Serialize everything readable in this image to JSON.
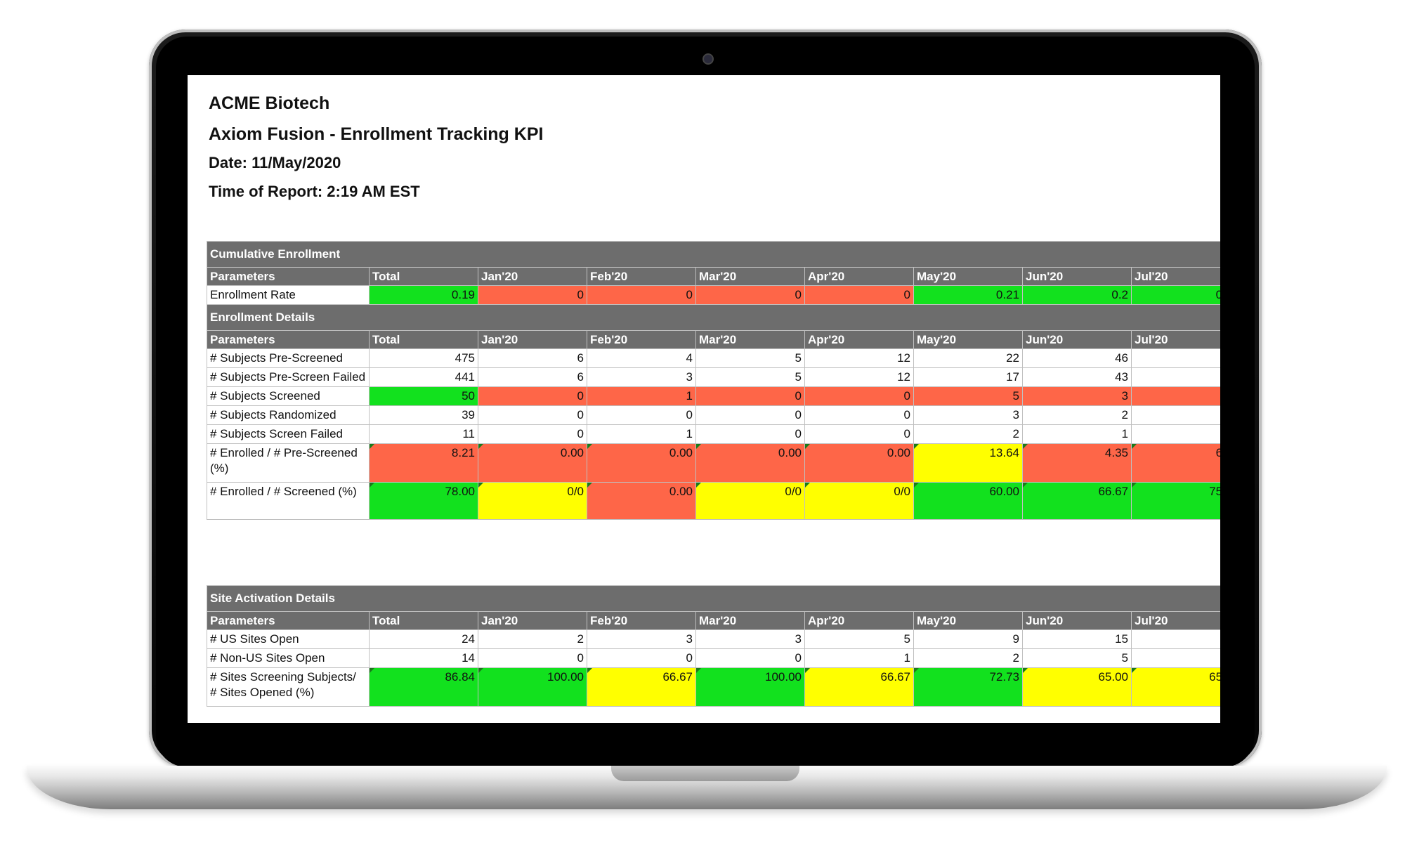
{
  "report": {
    "company": "ACME Biotech",
    "title": "Axiom Fusion - Enrollment Tracking KPI",
    "date": "Date: 11/May/2020",
    "time": "Time of Report: 2:19 AM EST"
  },
  "columns": [
    "Parameters",
    "Total",
    "Jan'20",
    "Feb'20",
    "Mar'20",
    "Apr'20",
    "May'20",
    "Jun'20",
    "Jul'20"
  ],
  "colors": {
    "green": "#12e11e",
    "red": "#fe6648",
    "yellow": "#ffff00",
    "header": "#6d6d6d"
  },
  "cumulative": {
    "title": "Cumulative Enrollment",
    "rows": [
      {
        "label": "Enrollment Rate",
        "values": [
          "0.19",
          "0",
          "0",
          "0",
          "0",
          "0.21",
          "0.2",
          "0"
        ]
      }
    ]
  },
  "details": {
    "title": "Enrollment Details",
    "rows": [
      {
        "label": "# Subjects Pre-Screened",
        "values": [
          "475",
          "6",
          "4",
          "5",
          "12",
          "22",
          "46",
          ""
        ]
      },
      {
        "label": "# Subjects Pre-Screen Failed",
        "values": [
          "441",
          "6",
          "3",
          "5",
          "12",
          "17",
          "43",
          ""
        ]
      },
      {
        "label": "# Subjects Screened",
        "values": [
          "50",
          "0",
          "1",
          "0",
          "0",
          "5",
          "3",
          ""
        ]
      },
      {
        "label": "# Subjects Randomized",
        "values": [
          "39",
          "0",
          "0",
          "0",
          "0",
          "3",
          "2",
          ""
        ]
      },
      {
        "label": "# Subjects Screen Failed",
        "values": [
          "11",
          "0",
          "1",
          "0",
          "0",
          "2",
          "1",
          ""
        ]
      },
      {
        "label": "# Enrolled / # Pre-Screened (%)",
        "values": [
          "8.21",
          "0.00",
          "0.00",
          "0.00",
          "0.00",
          "13.64",
          "4.35",
          "6"
        ]
      },
      {
        "label": "# Enrolled / # Screened (%)",
        "values": [
          "78.00",
          "0/0",
          "0.00",
          "0/0",
          "0/0",
          "60.00",
          "66.67",
          "75"
        ]
      }
    ]
  },
  "sites": {
    "title": "Site Activation Details",
    "rows": [
      {
        "label": "# US Sites Open",
        "values": [
          "24",
          "2",
          "3",
          "3",
          "5",
          "9",
          "15",
          ""
        ]
      },
      {
        "label": "# Non-US Sites Open",
        "values": [
          "14",
          "0",
          "0",
          "0",
          "1",
          "2",
          "5",
          ""
        ]
      },
      {
        "label": "# Sites Screening Subjects/ # Sites Opened (%)",
        "values": [
          "86.84",
          "100.00",
          "66.67",
          "100.00",
          "66.67",
          "72.73",
          "65.00",
          "65"
        ]
      }
    ]
  }
}
